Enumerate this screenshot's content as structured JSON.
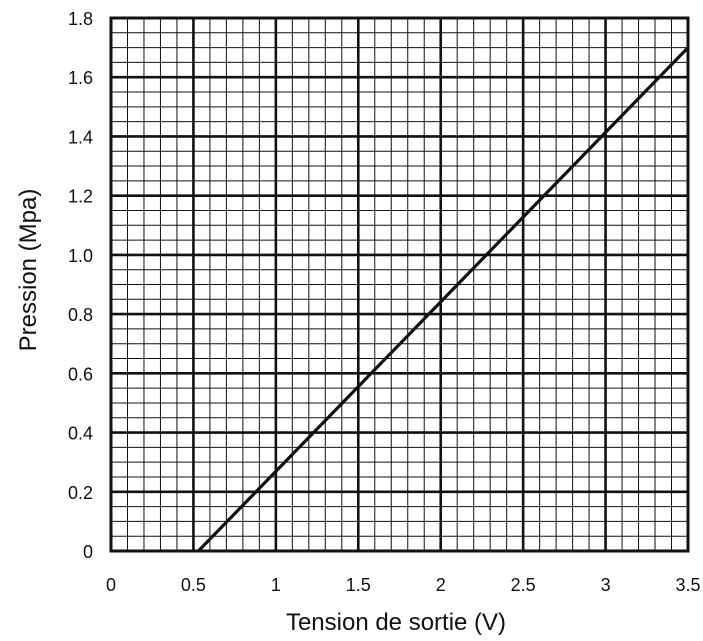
{
  "chart_data": {
    "type": "line",
    "xlabel": "Tension de sortie (V)",
    "ylabel": "Pression (Mpa)",
    "xlim": [
      0,
      3.5
    ],
    "ylim": [
      0,
      1.8
    ],
    "x_ticks": [
      "0",
      "0.5",
      "1",
      "1.5",
      "2",
      "2.5",
      "3",
      "3.5"
    ],
    "y_ticks": [
      "0",
      "0.2",
      "0.4",
      "0.6",
      "0.8",
      "1.0",
      "1.2",
      "1.4",
      "1.6",
      "1.8"
    ],
    "grid": true,
    "series": [
      {
        "x": [
          0.53,
          3.5
        ],
        "y": [
          0.0,
          1.7
        ]
      }
    ],
    "colors": {
      "line": "#111111",
      "grid": "#111111"
    }
  }
}
